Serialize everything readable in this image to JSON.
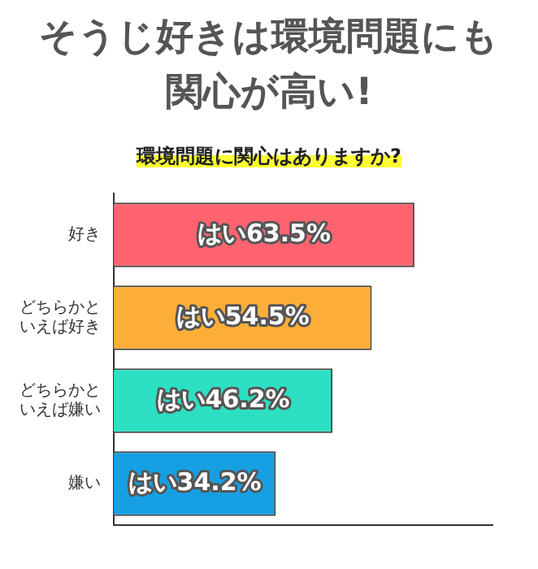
{
  "chart_data": {
    "type": "bar",
    "orientation": "horizontal",
    "title": "そうじ好きは環境問題にも関心が高い!",
    "subtitle": "環境問題に関心はありますか?",
    "categories": [
      "好き",
      "どちらかといえば好き",
      "どちらかといえば嫌い",
      "嫌い"
    ],
    "values": [
      63.5,
      54.5,
      46.2,
      34.2
    ],
    "colors": [
      "#ff6370",
      "#fdae38",
      "#2de0c3",
      "#16a0e3"
    ],
    "value_labels": [
      "はい63.5%",
      "はい54.5%",
      "はい46.2%",
      "はい34.2%"
    ],
    "tick_labels": "y",
    "grid": false,
    "legend": false
  }
}
